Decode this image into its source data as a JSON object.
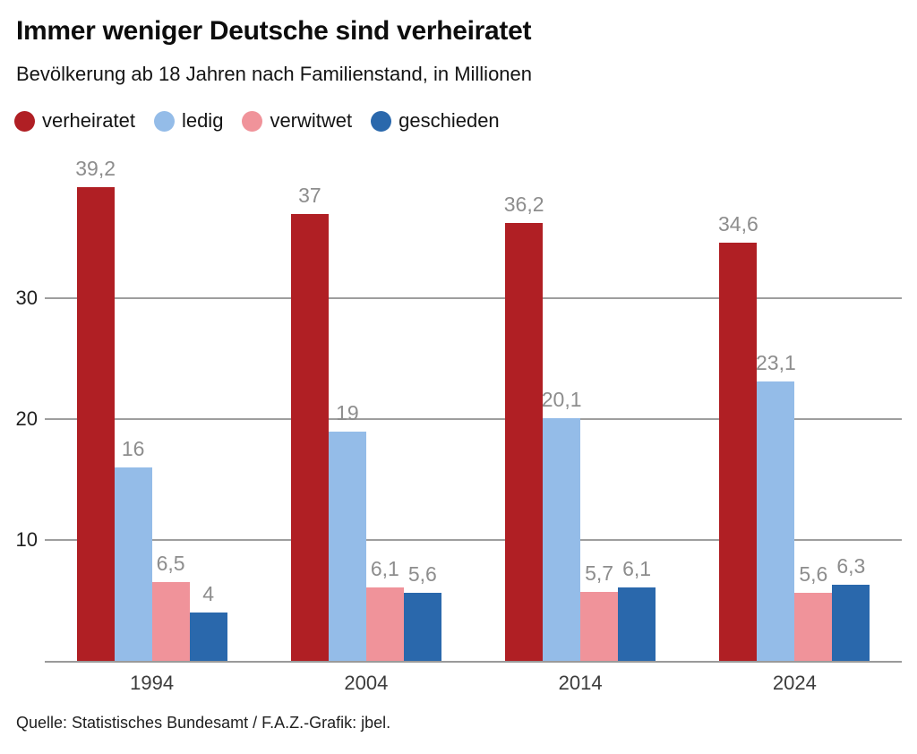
{
  "header": {
    "title": "Immer weniger Deutsche sind verheiratet",
    "subtitle": "Bevölkerung ab 18 Jahren nach Familienstand, in Millionen"
  },
  "legend": [
    {
      "label": "verheiratet",
      "color": "#b01f24"
    },
    {
      "label": "ledig",
      "color": "#94bce8"
    },
    {
      "label": "verwitwet",
      "color": "#f0939a"
    },
    {
      "label": "geschieden",
      "color": "#2a68ac"
    }
  ],
  "chart_data": {
    "type": "bar",
    "title": "Immer weniger Deutsche sind verheiratet",
    "subtitle": "Bevölkerung ab 18 Jahren nach Familienstand, in Millionen",
    "categories": [
      "1994",
      "2004",
      "2014",
      "2024"
    ],
    "series": [
      {
        "name": "verheiratet",
        "color": "#b01f24",
        "values": [
          39.2,
          37,
          36.2,
          34.6
        ],
        "labels": [
          "39,2",
          "37",
          "36,2",
          "34,6"
        ]
      },
      {
        "name": "ledig",
        "color": "#94bce8",
        "values": [
          16,
          19,
          20.1,
          23.1
        ],
        "labels": [
          "16",
          "19",
          "20,1",
          "23,1"
        ]
      },
      {
        "name": "verwitwet",
        "color": "#f0939a",
        "values": [
          6.5,
          6.1,
          5.7,
          5.6
        ],
        "labels": [
          "6,5",
          "6,1",
          "5,7",
          "5,6"
        ]
      },
      {
        "name": "geschieden",
        "color": "#2a68ac",
        "values": [
          4,
          5.6,
          6.1,
          6.3
        ],
        "labels": [
          "4",
          "5,6",
          "6,1",
          "6,3"
        ]
      }
    ],
    "y_ticks": [
      10,
      20,
      30
    ],
    "ylim": [
      0,
      41
    ],
    "xlabel": "",
    "ylabel": "",
    "grid": true,
    "legend_position": "top",
    "value_labels": true
  },
  "footer": {
    "source": "Quelle: Statistisches Bundesamt / F.A.Z.-Grafik: jbel."
  }
}
